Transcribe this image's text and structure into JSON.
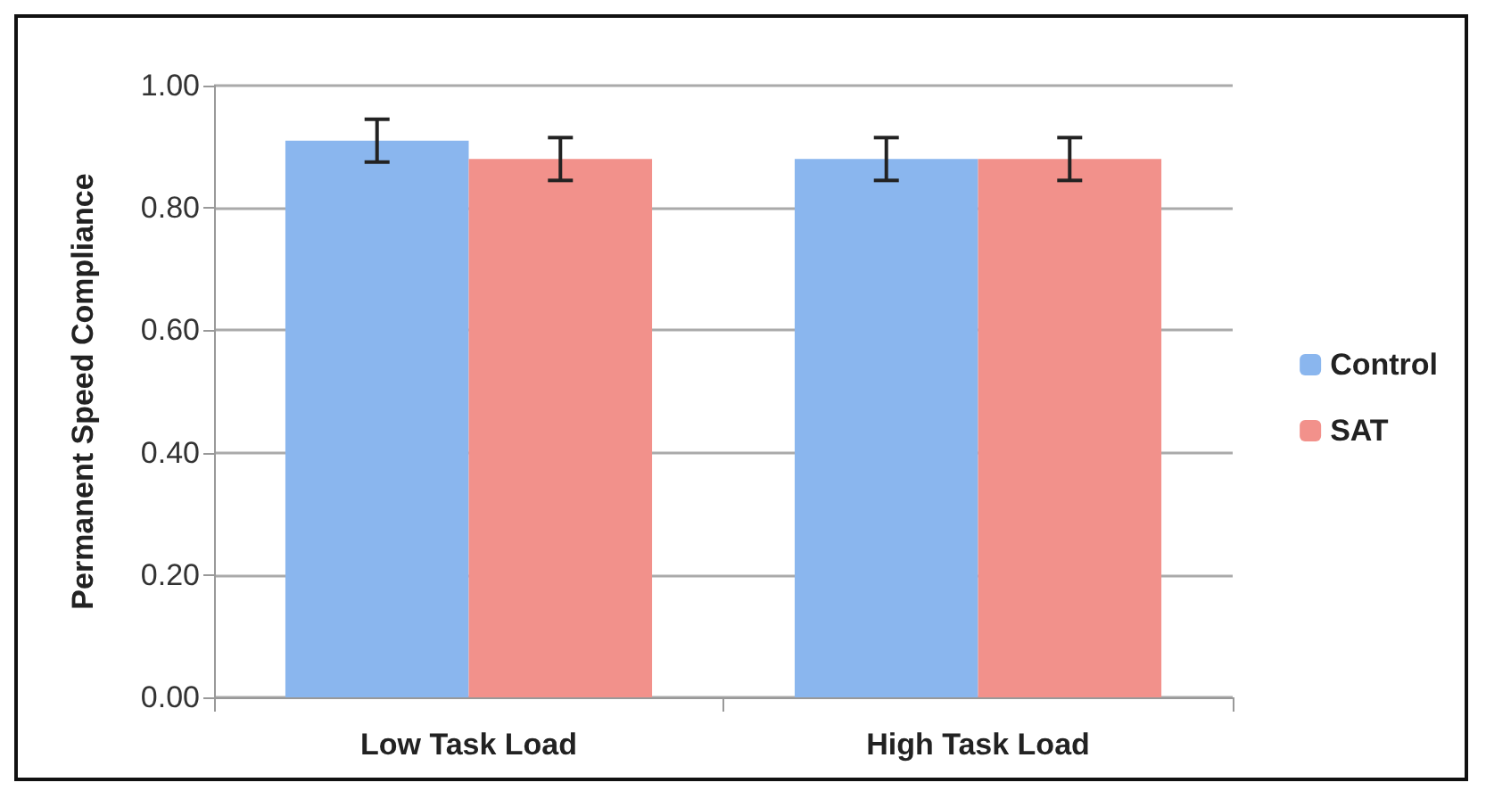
{
  "chart_data": {
    "type": "bar",
    "ylabel": "Permanent Speed Compliance",
    "categories": [
      "Low Task Load",
      "High Task Load"
    ],
    "series": [
      {
        "name": "Control",
        "color": "#8ab6ee",
        "values": [
          0.91,
          0.88
        ],
        "errors": [
          0.035,
          0.035
        ]
      },
      {
        "name": "SAT",
        "color": "#f2918b",
        "values": [
          0.88,
          0.88
        ],
        "errors": [
          0.035,
          0.035
        ]
      }
    ],
    "ylim": [
      0,
      1
    ],
    "yticks": [
      {
        "value": 0,
        "label": "0.00"
      },
      {
        "value": 0.2,
        "label": "0.20"
      },
      {
        "value": 0.4,
        "label": "0.40"
      },
      {
        "value": 0.6,
        "label": "0.60"
      },
      {
        "value": 0.8,
        "label": "0.80"
      },
      {
        "value": 1,
        "label": "1.00"
      }
    ],
    "grid": "y",
    "legend": "right"
  }
}
